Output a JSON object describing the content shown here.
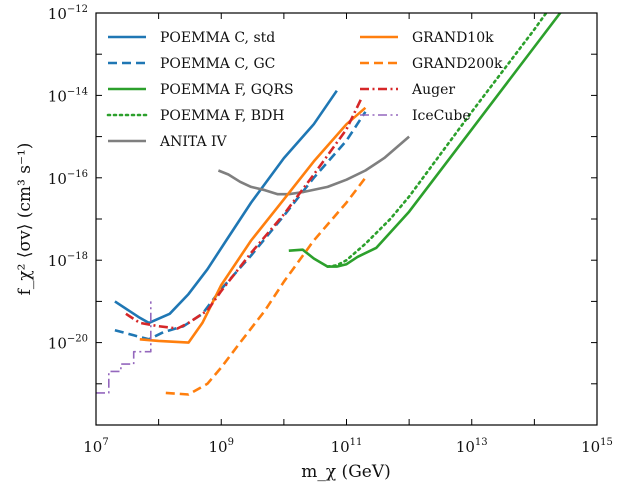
{
  "chart_data": {
    "type": "line",
    "xlabel": "m_χ (GeV)",
    "ylabel": "f_χ² ⟨σv⟩ (cm³ s⁻¹)",
    "xscale": "log",
    "yscale": "log",
    "xlim": [
      10000000.0,
      1000000000000000.0
    ],
    "ylim": [
      1e-22,
      1e-12
    ],
    "grid": false,
    "legend_placement": "top-left, two columns",
    "x_ticks": [
      10000000.0,
      1000000000.0,
      100000000000.0,
      10000000000000.0,
      1000000000000000.0
    ],
    "x_tick_labels": [
      {
        "base": "10",
        "exp": "7"
      },
      {
        "base": "10",
        "exp": "9"
      },
      {
        "base": "10",
        "exp": "11"
      },
      {
        "base": "10",
        "exp": "13"
      },
      {
        "base": "10",
        "exp": "15"
      }
    ],
    "y_ticks": [
      1e-20,
      1e-18,
      1e-16,
      1e-14,
      1e-12
    ],
    "y_tick_labels": [
      {
        "base": "10",
        "exp": "−20"
      },
      {
        "base": "10",
        "exp": "−18"
      },
      {
        "base": "10",
        "exp": "−16"
      },
      {
        "base": "10",
        "exp": "−14"
      },
      {
        "base": "10",
        "exp": "−12"
      }
    ],
    "series": [
      {
        "name": "POEMMA C, std",
        "color": "#1f77b4",
        "dash": "solid",
        "x": [
          20000000.0,
          50000000.0,
          70000000.0,
          150000000.0,
          300000000.0,
          600000000.0,
          1200000000.0,
          3000000000.0,
          10000000000.0,
          30000000000.0,
          70000000000.0
        ],
        "y": [
          1e-19,
          4e-20,
          3e-20,
          5e-20,
          1.5e-19,
          6e-19,
          3e-18,
          2.5e-17,
          3e-16,
          2e-15,
          1.3e-14
        ]
      },
      {
        "name": "POEMMA C, GC",
        "color": "#1f77b4",
        "dash": "dashed",
        "x": [
          20000000.0,
          40000000.0,
          70000000.0,
          120000000.0,
          250000000.0,
          500000000.0,
          1000000000.0,
          3000000000.0,
          10000000000.0,
          30000000000.0,
          100000000000.0,
          200000000000.0
        ],
        "y": [
          2e-20,
          1.5e-20,
          1.2e-20,
          1.8e-20,
          2.5e-20,
          5e-20,
          2e-19,
          1.3e-18,
          1.2e-17,
          1e-16,
          8e-16,
          4e-15
        ]
      },
      {
        "name": "POEMMA F, GQRS",
        "color": "#2ca02c",
        "dash": "solid",
        "x": [
          12000000000.0,
          20000000000.0,
          30000000000.0,
          50000000000.0,
          70000000000.0,
          100000000000.0,
          150000000000.0,
          300000000000.0,
          1000000000000.0,
          10000000000000.0,
          100000000000000.0,
          1000000000000000.0
        ],
        "y": [
          1.7e-18,
          1.8e-18,
          1.1e-18,
          7e-19,
          7e-19,
          8e-19,
          1.2e-18,
          2e-18,
          1.5e-17,
          1.5e-15,
          1.5e-13,
          1.5e-11
        ]
      },
      {
        "name": "POEMMA F, BDH",
        "color": "#2ca02c",
        "dash": "dotted",
        "x": [
          50000000000.0,
          70000000000.0,
          100000000000.0,
          200000000000.0,
          500000000000.0,
          1000000000000.0,
          10000000000000.0,
          100000000000000.0,
          500000000000000.0
        ],
        "y": [
          7e-19,
          7.5e-19,
          1e-18,
          2.5e-18,
          1e-17,
          3.5e-17,
          4e-15,
          4e-13,
          1.2e-11
        ]
      },
      {
        "name": "ANITA IV",
        "color": "#7f7f7f",
        "dash": "solid",
        "x": [
          900000000.0,
          1300000000.0,
          2000000000.0,
          3000000000.0,
          5000000000.0,
          8000000000.0,
          12000000000.0,
          20000000000.0,
          50000000000.0,
          100000000000.0,
          200000000000.0,
          400000000000.0,
          1000000000000.0
        ],
        "y": [
          1.5e-16,
          1.2e-16,
          8e-17,
          6e-17,
          5e-17,
          4e-17,
          4e-17,
          4.5e-17,
          6e-17,
          9e-17,
          1.5e-16,
          3e-16,
          1e-15
        ]
      },
      {
        "name": "GRAND10k",
        "color": "#ff7f0e",
        "dash": "solid",
        "x": [
          50000000.0,
          100000000.0,
          300000000.0,
          500000000.0,
          1000000000.0,
          3000000000.0,
          10000000000.0,
          30000000000.0,
          100000000000.0,
          200000000000.0
        ],
        "y": [
          1.2e-20,
          1.1e-20,
          1e-20,
          3e-20,
          2.5e-19,
          3e-18,
          3e-17,
          2.5e-16,
          2e-15,
          5e-15
        ]
      },
      {
        "name": "GRAND200k",
        "color": "#ff7f0e",
        "dash": "dashed",
        "x": [
          130000000.0,
          300000000.0,
          600000000.0,
          1000000000.0,
          2000000000.0,
          5000000000.0,
          10000000000.0,
          30000000000.0,
          100000000000.0,
          200000000000.0
        ],
        "y": [
          6e-22,
          5.5e-22,
          1e-21,
          2.5e-21,
          1e-20,
          6e-20,
          3e-19,
          3e-18,
          2.5e-17,
          1e-16
        ]
      },
      {
        "name": "Auger",
        "color": "#d62728",
        "dash": "dashdot",
        "x": [
          30000000.0,
          50000000.0,
          100000000.0,
          200000000.0,
          300000000.0,
          600000000.0,
          1000000000.0,
          3000000000.0,
          10000000000.0,
          30000000000.0,
          100000000000.0,
          170000000000.0
        ],
        "y": [
          5e-20,
          3e-20,
          2.5e-20,
          2.2e-20,
          3e-20,
          6e-20,
          1.8e-19,
          1.5e-18,
          1.3e-17,
          1.2e-16,
          1.5e-15,
          8e-15
        ]
      },
      {
        "name": "IceCube",
        "color": "#9467bd",
        "dash": "dashdot",
        "x": [
          10000000.0,
          13000000.0,
          16000000.0,
          16000000.0,
          25000000.0,
          25000000.0,
          40000000.0,
          40000000.0,
          60000000.0,
          60000000.0,
          75000000.0,
          75000000.0
        ],
        "y": [
          6e-22,
          6e-22,
          6e-22,
          2e-21,
          2e-21,
          3e-21,
          3e-21,
          6e-21,
          6e-21,
          6e-21,
          6e-21,
          1e-19
        ]
      }
    ]
  }
}
